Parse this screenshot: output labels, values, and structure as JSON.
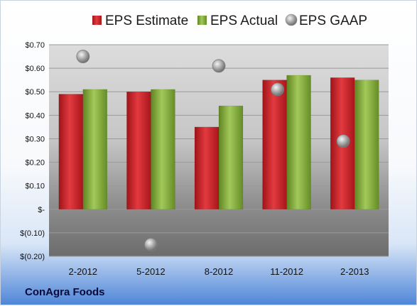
{
  "chart_data": {
    "type": "bar",
    "categories": [
      "2-2012",
      "5-2012",
      "8-2012",
      "11-2012",
      "2-2013"
    ],
    "series": [
      {
        "name": "EPS Estimate",
        "kind": "bar",
        "color": "#d0242a",
        "values": [
          0.49,
          0.5,
          0.35,
          0.55,
          0.56
        ]
      },
      {
        "name": "EPS Actual",
        "kind": "bar",
        "color": "#8bb240",
        "values": [
          0.51,
          0.51,
          0.44,
          0.57,
          0.55
        ]
      },
      {
        "name": "EPS GAAP",
        "kind": "marker",
        "color": "#a9a9a9",
        "values": [
          0.65,
          -0.15,
          0.61,
          0.51,
          0.29
        ]
      }
    ],
    "ylim": [
      -0.2,
      0.7
    ],
    "y_ticks": [
      0.7,
      0.6,
      0.5,
      0.4,
      0.3,
      0.2,
      0.1,
      0.0,
      -0.1,
      -0.2
    ],
    "y_tick_labels": [
      "$0.70",
      "$0.60",
      "$0.50",
      "$0.40",
      "$0.30",
      "$0.20",
      "$0.10",
      "$-",
      "$(0.10)",
      "$(0.20)"
    ],
    "grid": true,
    "legend_position": "top"
  },
  "footer": {
    "company": "ConAgra Foods"
  }
}
